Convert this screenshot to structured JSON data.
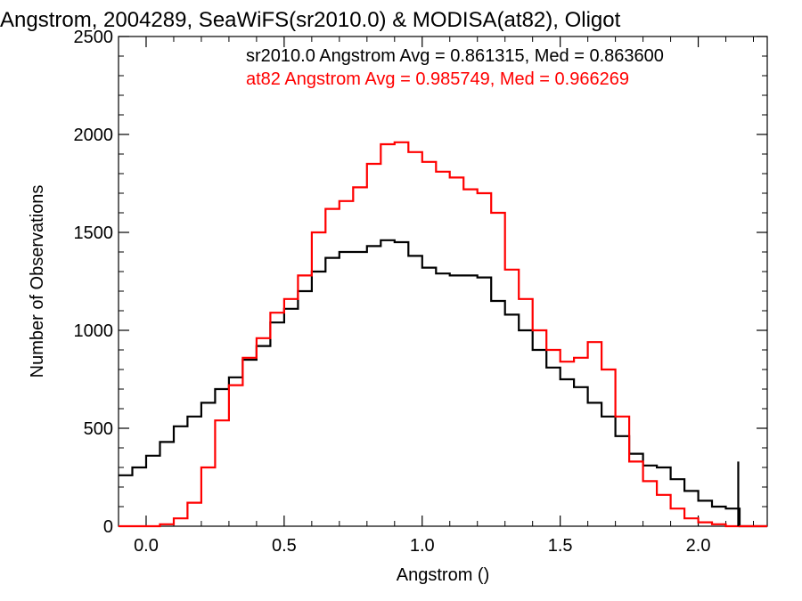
{
  "chart_data": {
    "type": "line",
    "title": "Angstrom, 2004289, SeaWiFS(sr2010.0) & MODISA(at82), Oligot",
    "xlabel": "Angstrom ()",
    "ylabel": "Number of Observations",
    "xlim": [
      -0.1,
      2.25
    ],
    "ylim": [
      0,
      2500
    ],
    "x_ticks": [
      0.0,
      0.5,
      1.0,
      1.5,
      2.0
    ],
    "x_tick_labels": [
      "0.0",
      "0.5",
      "1.0",
      "1.5",
      "2.0"
    ],
    "y_ticks": [
      0,
      500,
      1000,
      1500,
      2000,
      2500
    ],
    "y_tick_labels": [
      "0",
      "500",
      "1000",
      "1500",
      "2000",
      "2500"
    ],
    "grid": false,
    "legend_position": "top-right",
    "annotations": [
      {
        "text": "sr2010.0 Angstrom Avg = 0.861315, Med = 0.863600",
        "color": "#000000"
      },
      {
        "text": "at82 Angstrom Avg = 0.985749, Med = 0.966269",
        "color": "#ff0000"
      }
    ],
    "x": [
      -0.1,
      -0.05,
      0.0,
      0.05,
      0.1,
      0.15,
      0.2,
      0.25,
      0.3,
      0.35,
      0.4,
      0.45,
      0.5,
      0.55,
      0.6,
      0.65,
      0.7,
      0.75,
      0.8,
      0.85,
      0.9,
      0.95,
      1.0,
      1.05,
      1.1,
      1.15,
      1.2,
      1.25,
      1.3,
      1.35,
      1.4,
      1.45,
      1.5,
      1.55,
      1.6,
      1.65,
      1.7,
      1.75,
      1.8,
      1.85,
      1.9,
      1.95,
      2.0,
      2.05,
      2.1,
      2.15,
      2.2,
      2.25
    ],
    "series": [
      {
        "color": "#000000",
        "values": [
          260,
          300,
          360,
          430,
          510,
          560,
          630,
          700,
          760,
          850,
          920,
          1040,
          1110,
          1200,
          1300,
          1370,
          1400,
          1400,
          1430,
          1460,
          1450,
          1380,
          1320,
          1290,
          1280,
          1280,
          1270,
          1150,
          1080,
          1000,
          900,
          810,
          750,
          710,
          630,
          560,
          460,
          370,
          310,
          300,
          240,
          180,
          130,
          100,
          90,
          0,
          0,
          0
        ]
      },
      {
        "color": "#ff0000",
        "values": [
          0,
          0,
          0,
          10,
          40,
          120,
          300,
          540,
          720,
          860,
          960,
          1090,
          1160,
          1280,
          1500,
          1620,
          1660,
          1730,
          1850,
          1950,
          1960,
          1910,
          1860,
          1810,
          1780,
          1720,
          1700,
          1600,
          1310,
          1160,
          1000,
          900,
          840,
          860,
          940,
          800,
          560,
          330,
          230,
          160,
          90,
          40,
          20,
          10,
          0,
          0,
          0,
          0
        ]
      }
    ],
    "spike": {
      "x": 2.145,
      "value": 330,
      "color": "#000000"
    }
  }
}
